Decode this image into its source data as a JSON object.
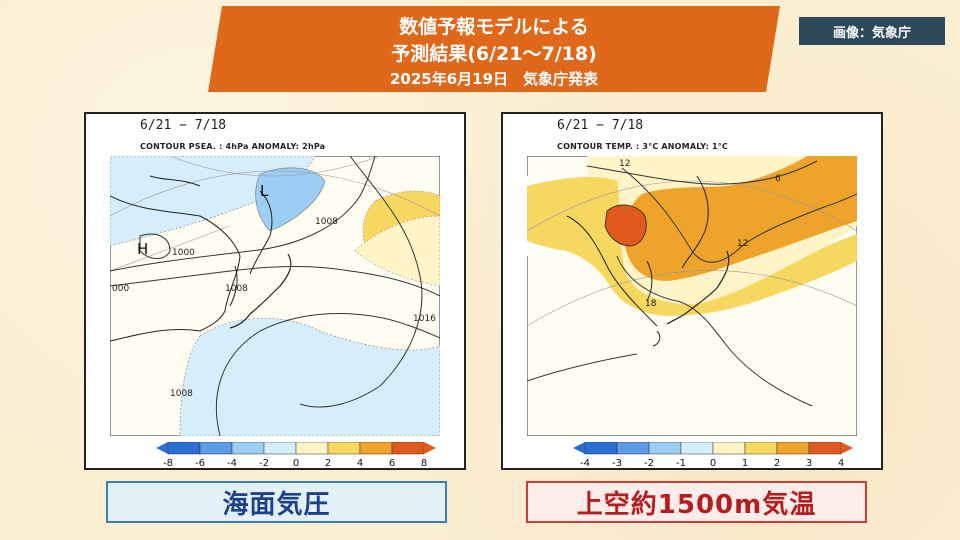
{
  "banner": {
    "line1": "数値予報モデルによる",
    "line2": "予測結果(6/21～7/18)",
    "line3": "2025年6月19日　気象庁発表",
    "color": "#e0681a"
  },
  "credit": "画像：気象庁",
  "panels": [
    {
      "date": "6/21 − 7/18",
      "header": "CONTOUR PSEA. :  4hPa     ANOMALY:  2hPa",
      "contour_labels": [
        "L",
        "H",
        "1008",
        "1000",
        "1008",
        "1016",
        "000",
        "1008"
      ],
      "colorbar_ticks": [
        "-8",
        "-6",
        "-4",
        "-2",
        "0",
        "2",
        "4",
        "6",
        "8"
      ],
      "title": "海面気圧",
      "title_color": "#1f3f8a",
      "title_bg": "#e2f0f8",
      "title_border": "#3a7fb6"
    },
    {
      "date": "6/21 − 7/18",
      "header": "CONTOUR TEMP. :  3°C     ANOMALY:  1°C",
      "contour_labels": [
        "12",
        "6",
        "12",
        "18"
      ],
      "colorbar_ticks": [
        "-4",
        "-3",
        "-2",
        "-1",
        "0",
        "1",
        "2",
        "3",
        "4"
      ],
      "title": "上空約1500m気温",
      "title_color": "#b51e1e",
      "title_bg": "#fcecea",
      "title_border": "#d23a3a"
    }
  ],
  "colors": {
    "neg4": "#2a6fd6",
    "neg3": "#5a9de6",
    "neg2": "#9ccdf2",
    "neg1": "#d6eefb",
    "pos1": "#fff4c8",
    "pos2": "#f6d860",
    "pos3": "#eea42a",
    "pos4": "#e05a1e"
  }
}
